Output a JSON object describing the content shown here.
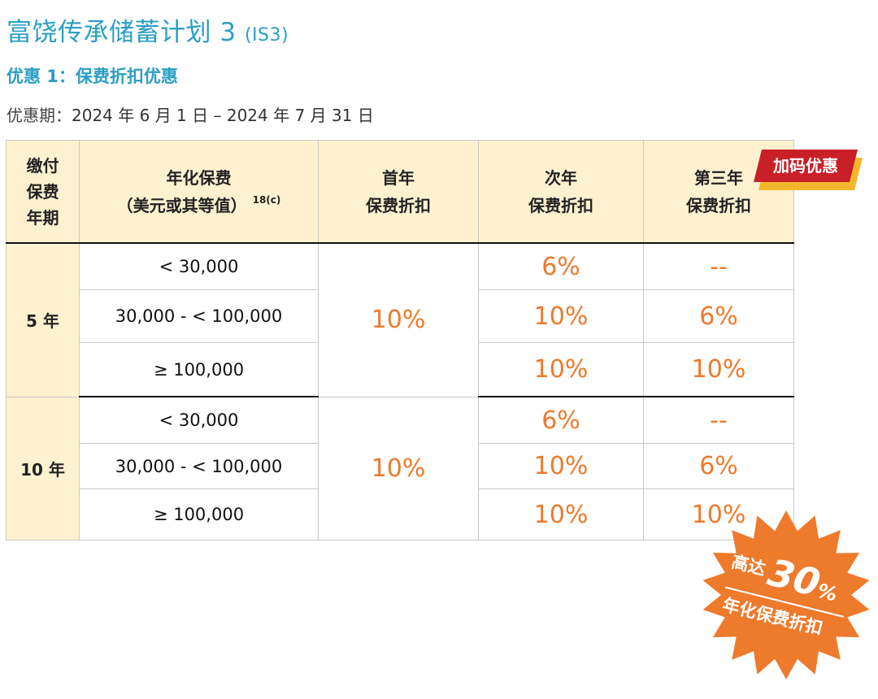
{
  "header": {
    "title": "富饶传承储蓄计划 3",
    "title_code": "(IS3)",
    "offer_title": "优惠 1：保费折扣优惠",
    "period_label": "优惠期：",
    "period_value": "2024 年 6 月 1 日 – 2024 年 7 月 31 日"
  },
  "table": {
    "headers": {
      "term": [
        "缴付",
        "保费",
        "年期"
      ],
      "premium": [
        "年化保费",
        "（美元或其等值）"
      ],
      "premium_note": "18(c)",
      "year1": [
        "首年",
        "保费折扣"
      ],
      "year2": [
        "次年",
        "保费折扣"
      ],
      "year3": [
        "第三年",
        "保费折扣"
      ]
    },
    "groups": [
      {
        "term": "5 年",
        "first_year": "10%",
        "rows": [
          {
            "premium": "< 30,000",
            "year2": "6%",
            "year3": "--"
          },
          {
            "premium": "30,000 - < 100,000",
            "year2": "10%",
            "year3": "6%"
          },
          {
            "premium": "≥ 100,000",
            "year2": "10%",
            "year3": "10%"
          }
        ]
      },
      {
        "term": "10 年",
        "first_year": "10%",
        "rows": [
          {
            "premium": "< 30,000",
            "year2": "6%",
            "year3": "--"
          },
          {
            "premium": "30,000 - < 100,000",
            "year2": "10%",
            "year3": "6%"
          },
          {
            "premium": "≥ 100,000",
            "year2": "10%",
            "year3": "10%"
          }
        ]
      }
    ]
  },
  "badges": {
    "bonus_label": "加码优惠",
    "burst_prefix": "高达",
    "burst_value": "30",
    "burst_unit": "%",
    "burst_caption": "年化保费折扣"
  },
  "colors": {
    "title": "#2a9fc3",
    "header_bg": "#fdf1cf",
    "percent": "#ee7a2c",
    "ribbon": "#c91f27",
    "ribbon_shadow": "#f3b72c",
    "burst": "#ee7a2c"
  }
}
